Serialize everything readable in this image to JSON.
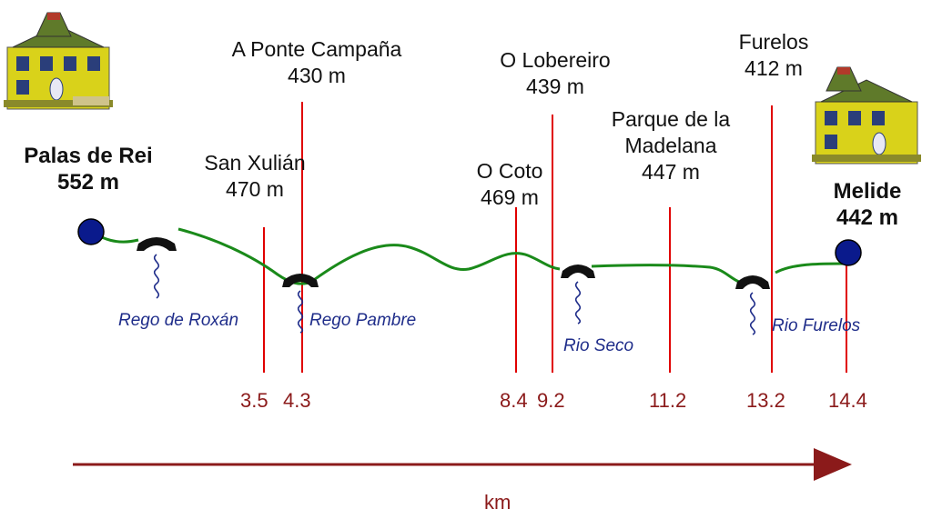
{
  "start": {
    "name": "Palas de Rei",
    "elevation": "552 m"
  },
  "end": {
    "name": "Melide",
    "elevation": "442 m"
  },
  "waypoints": [
    {
      "id": "san-xulian",
      "name": "San Xulián",
      "elevation": "470 m"
    },
    {
      "id": "ponte-campana",
      "name": "A Ponte Campaña",
      "elevation": "430 m"
    },
    {
      "id": "coto",
      "name": "O Coto",
      "elevation": "469 m"
    },
    {
      "id": "lobereiro",
      "name": "O Lobereiro",
      "elevation": "439 m"
    },
    {
      "id": "madelana",
      "name": "Parque de la Madelana",
      "elevation": "447 m"
    },
    {
      "id": "furelos",
      "name": "Furelos",
      "elevation": "412 m"
    }
  ],
  "rivers": [
    "Rego de Roxán",
    "Rego Pambre",
    "Rio Seco",
    "Rio Furelos"
  ],
  "km_markers": [
    "3.5",
    "4.3",
    "8.4",
    "9.2",
    "11.2",
    "13.2",
    "14.4"
  ],
  "axis_label": "km",
  "colors": {
    "route": "#1a8a1a",
    "marker": "#e00000",
    "km_text": "#8b1a1a",
    "river": "#1f2d8a",
    "town_dot": "#0a1a8c"
  },
  "icons": {
    "town": "house-icon",
    "bridge": "bridge-icon",
    "stream": "river-squiggle-icon"
  }
}
